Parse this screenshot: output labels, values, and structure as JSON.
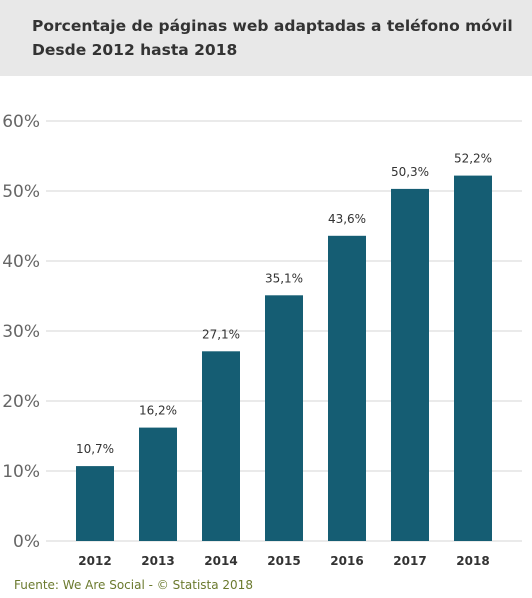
{
  "header": {
    "title": "Porcentaje de páginas web adaptadas a teléfono móvil",
    "subtitle": "Desde 2012 hasta 2018"
  },
  "source": "Fuente: We Are Social - © Statista 2018",
  "colors": {
    "bar": "#155d73",
    "grid": "#d5d5d5",
    "header_bg": "#e8e8e8",
    "source_text": "#6b7a2e"
  },
  "chart_data": {
    "type": "bar",
    "title": "Porcentaje de páginas web adaptadas a teléfono móvil",
    "subtitle": "Desde 2012 hasta 2018",
    "categories": [
      "2012",
      "2013",
      "2014",
      "2015",
      "2016",
      "2017",
      "2018"
    ],
    "values": [
      10.7,
      16.2,
      27.1,
      35.1,
      43.6,
      50.3,
      52.2
    ],
    "value_labels": [
      "10,7%",
      "16,2%",
      "27,1%",
      "35,1%",
      "43,6%",
      "50,3%",
      "52,2%"
    ],
    "yticks": [
      0,
      10,
      20,
      30,
      40,
      50,
      60
    ],
    "ytick_labels": [
      "0%",
      "10%",
      "20%",
      "30%",
      "40%",
      "50%",
      "60%"
    ],
    "ylim": [
      0,
      60
    ],
    "xlabel": "",
    "ylabel": "",
    "grid": true,
    "legend": "none"
  }
}
